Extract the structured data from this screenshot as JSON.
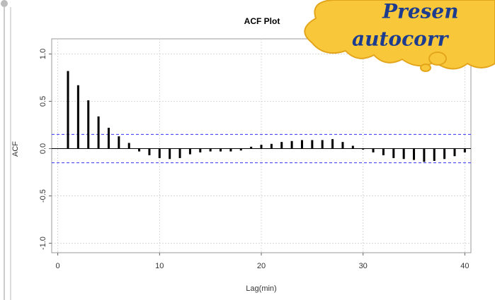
{
  "chart_data": {
    "type": "acf",
    "title": "ACF Plot",
    "x_label": "Lag(min)",
    "y_label": "ACF",
    "x": [
      1,
      2,
      3,
      4,
      5,
      6,
      7,
      8,
      9,
      10,
      11,
      12,
      13,
      14,
      15,
      16,
      17,
      18,
      19,
      20,
      21,
      22,
      23,
      24,
      25,
      26,
      27,
      28,
      29,
      30,
      31,
      32,
      33,
      34,
      35,
      36,
      37,
      38,
      39,
      40
    ],
    "values": [
      0.82,
      0.67,
      0.51,
      0.34,
      0.22,
      0.13,
      0.06,
      -0.03,
      -0.07,
      -0.1,
      -0.11,
      -0.1,
      -0.06,
      -0.04,
      -0.03,
      -0.03,
      -0.03,
      -0.02,
      0.02,
      0.04,
      0.05,
      0.07,
      0.08,
      0.09,
      0.09,
      0.09,
      0.1,
      0.07,
      0.03,
      -0.01,
      -0.04,
      -0.07,
      -0.1,
      -0.11,
      -0.12,
      -0.14,
      -0.13,
      -0.11,
      -0.08,
      -0.04
    ],
    "color": "#000000",
    "conf_limits": [
      0.15,
      -0.15
    ],
    "conf_color": "#3333ff",
    "xlim": [
      -0.6,
      40.6
    ],
    "ylim": [
      -1.1,
      1.16
    ],
    "xticks": [
      0,
      10,
      20,
      30,
      40
    ],
    "yticks": [
      {
        "value": -1.0,
        "label": "-1.0"
      },
      {
        "value": -0.5,
        "label": "-0.5"
      },
      {
        "value": 0.0,
        "label": "0.0"
      },
      {
        "value": 0.5,
        "label": "0.5"
      },
      {
        "value": 1.0,
        "label": "1.0"
      }
    ],
    "grid": true,
    "annotations": [
      "Presen",
      "autocorr"
    ]
  }
}
